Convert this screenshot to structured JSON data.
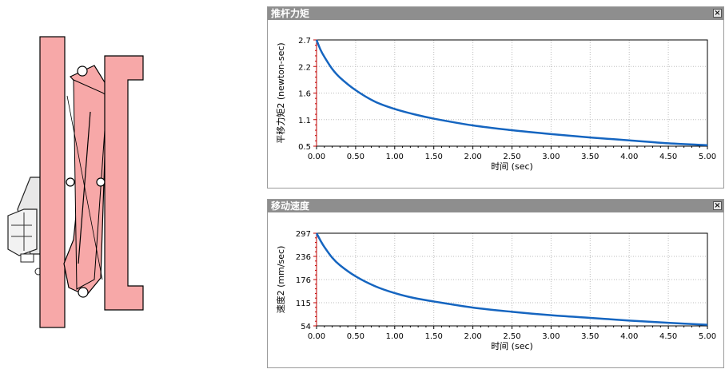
{
  "panels": [
    {
      "title": "推杆力矩",
      "close_glyph": "×",
      "chart_data": {
        "type": "line",
        "xlabel": "时间 (sec)",
        "ylabel": "平移力矩2 (newton-sec)",
        "xlim": [
          0,
          5
        ],
        "ylim": [
          0.5,
          2.7
        ],
        "x_ticks": [
          "0.00",
          "0.50",
          "1.00",
          "1.50",
          "2.00",
          "2.50",
          "3.00",
          "3.50",
          "4.00",
          "4.50",
          "5.00"
        ],
        "y_ticks": [
          "2.7",
          "2.2",
          "1.6",
          "1.1",
          "0.5"
        ],
        "grid": true,
        "line_color": "#1565c0",
        "x": [
          0,
          0.05,
          0.1,
          0.2,
          0.3,
          0.5,
          0.75,
          1.0,
          1.25,
          1.5,
          2.0,
          2.5,
          3.0,
          3.5,
          4.0,
          4.5,
          5.0
        ],
        "y": [
          2.7,
          2.5,
          2.35,
          2.1,
          1.92,
          1.66,
          1.42,
          1.27,
          1.16,
          1.07,
          0.93,
          0.83,
          0.75,
          0.68,
          0.62,
          0.56,
          0.52
        ]
      }
    },
    {
      "title": "移动速度",
      "close_glyph": "×",
      "chart_data": {
        "type": "line",
        "xlabel": "时间 (sec)",
        "ylabel": "速度2 (mm/sec)",
        "xlim": [
          0,
          5
        ],
        "ylim": [
          54,
          297
        ],
        "x_ticks": [
          "0.00",
          "0.50",
          "1.00",
          "1.50",
          "2.00",
          "2.50",
          "3.00",
          "3.50",
          "4.00",
          "4.50",
          "5.00"
        ],
        "y_ticks": [
          "297",
          "236",
          "176",
          "115",
          "54"
        ],
        "grid": true,
        "line_color": "#1565c0",
        "x": [
          0,
          0.05,
          0.1,
          0.2,
          0.3,
          0.5,
          0.75,
          1.0,
          1.25,
          1.5,
          2.0,
          2.5,
          3.0,
          3.5,
          4.0,
          4.5,
          5.0
        ],
        "y": [
          297,
          278,
          261,
          233,
          213,
          184,
          158,
          140,
          127,
          118,
          102,
          91,
          82,
          75,
          68,
          62,
          57
        ]
      }
    }
  ],
  "mechanism": {
    "plate_color": "#f7a8a8",
    "outline_color": "#000000"
  }
}
